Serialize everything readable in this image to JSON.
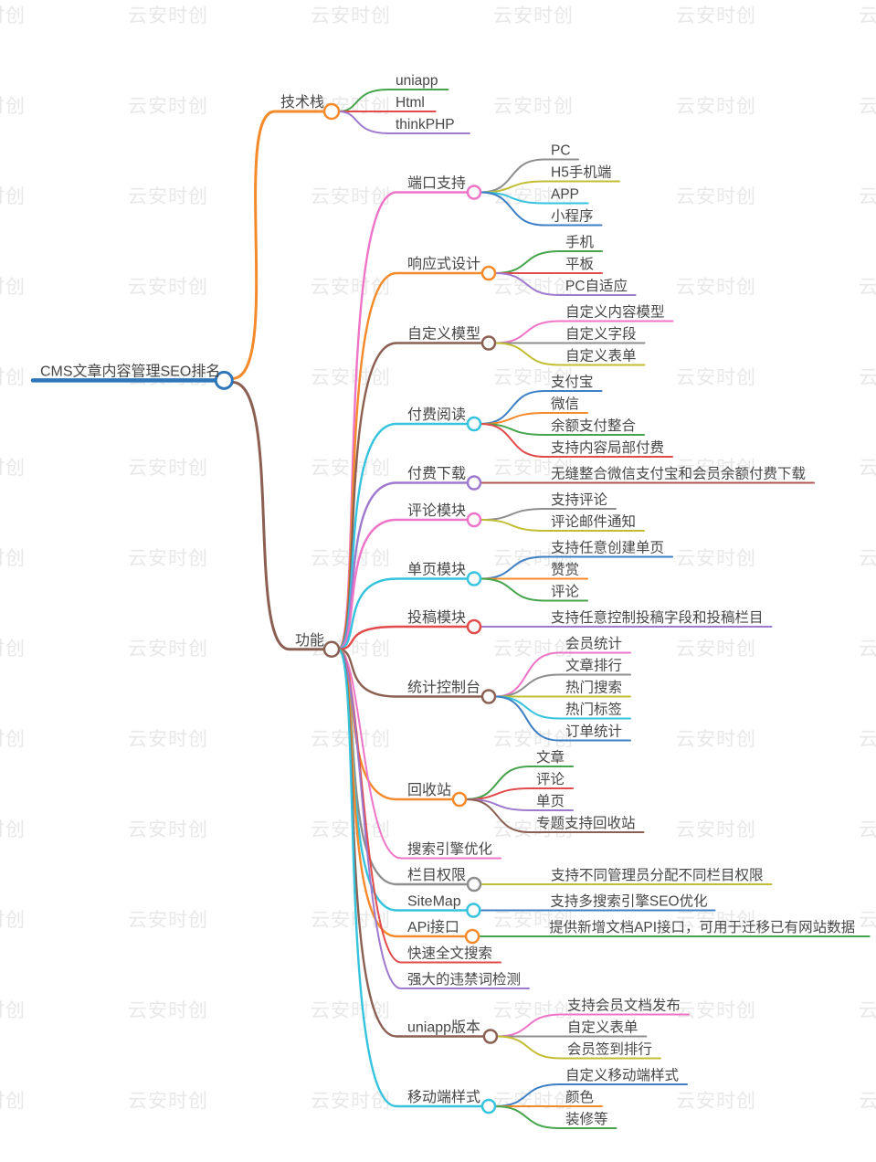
{
  "watermark": {
    "text": "云安时创"
  },
  "colors": {
    "rootblue": "#2e76ba",
    "blue": "#3f80c4",
    "orange": "#f58a2b",
    "green": "#46a44c",
    "red": "#e14b4b",
    "darkred": "#b05454",
    "purple": "#9e79cd",
    "pink": "#ee74c8",
    "cyan": "#35c3dd",
    "olive": "#c3bd33",
    "gray": "#8e8e8e",
    "brown": "#8b6052",
    "text": "#474747",
    "watermark": "#e8e8e8"
  },
  "mindmap": {
    "root": {
      "label": "CMS文章内容管理SEO排名",
      "color": "rootblue",
      "children": [
        {
          "label": "技术栈",
          "color": "orange",
          "children": [
            {
              "label": "uniapp",
              "color": "green"
            },
            {
              "label": "Html",
              "color": "red"
            },
            {
              "label": "thinkPHP",
              "color": "purple"
            }
          ]
        },
        {
          "label": "功能",
          "color": "brown",
          "children": [
            {
              "label": "端口支持",
              "color": "pink",
              "children": [
                {
                  "label": "PC",
                  "color": "gray"
                },
                {
                  "label": "H5手机端",
                  "color": "olive"
                },
                {
                  "label": "APP",
                  "color": "cyan"
                },
                {
                  "label": "小程序",
                  "color": "blue"
                }
              ]
            },
            {
              "label": "响应式设计",
              "color": "orange",
              "children": [
                {
                  "label": "手机",
                  "color": "green"
                },
                {
                  "label": "平板",
                  "color": "red"
                },
                {
                  "label": "PC自适应",
                  "color": "purple"
                }
              ]
            },
            {
              "label": "自定义模型",
              "color": "brown",
              "children": [
                {
                  "label": "自定义内容模型",
                  "color": "pink"
                },
                {
                  "label": "自定义字段",
                  "color": "gray"
                },
                {
                  "label": "自定义表单",
                  "color": "olive"
                }
              ]
            },
            {
              "label": "付费阅读",
              "color": "cyan",
              "children": [
                {
                  "label": "支付宝",
                  "color": "blue"
                },
                {
                  "label": "微信",
                  "color": "orange"
                },
                {
                  "label": "余额支付整合",
                  "color": "green"
                },
                {
                  "label": "支持内容局部付费",
                  "color": "red"
                }
              ]
            },
            {
              "label": "付费下载",
              "color": "purple",
              "children": [
                {
                  "label": "无缝整合微信支付宝和会员余额付费下载",
                  "color": "darkred"
                }
              ]
            },
            {
              "label": "评论模块",
              "color": "pink",
              "children": [
                {
                  "label": "支持评论",
                  "color": "gray"
                },
                {
                  "label": "评论邮件通知",
                  "color": "olive"
                }
              ]
            },
            {
              "label": "单页模块",
              "color": "cyan",
              "children": [
                {
                  "label": "支持任意创建单页",
                  "color": "blue"
                },
                {
                  "label": "赞赏",
                  "color": "orange"
                },
                {
                  "label": "评论",
                  "color": "green"
                }
              ]
            },
            {
              "label": "投稿模块",
              "color": "red",
              "children": [
                {
                  "label": "支持任意控制投稿字段和投稿栏目",
                  "color": "purple"
                }
              ]
            },
            {
              "label": "统计控制台",
              "color": "brown",
              "children": [
                {
                  "label": "会员统计",
                  "color": "pink"
                },
                {
                  "label": "文章排行",
                  "color": "gray"
                },
                {
                  "label": "热门搜索",
                  "color": "olive"
                },
                {
                  "label": "热门标签",
                  "color": "cyan"
                },
                {
                  "label": "订单统计",
                  "color": "blue"
                }
              ]
            },
            {
              "label": "回收站",
              "color": "orange",
              "children": [
                {
                  "label": "文章",
                  "color": "green"
                },
                {
                  "label": "评论",
                  "color": "red"
                },
                {
                  "label": "单页",
                  "color": "purple"
                },
                {
                  "label": "专题支持回收站",
                  "color": "brown"
                }
              ]
            },
            {
              "label": "搜索引擎优化",
              "color": "pink"
            },
            {
              "label": "栏目权限",
              "color": "gray",
              "children": [
                {
                  "label": "支持不同管理员分配不同栏目权限",
                  "color": "olive"
                }
              ]
            },
            {
              "label": "SiteMap",
              "color": "cyan",
              "children": [
                {
                  "label": "支持多搜索引擎SEO优化",
                  "color": "blue"
                }
              ]
            },
            {
              "label": "APi接口",
              "color": "orange",
              "children": [
                {
                  "label": "提供新增文档API接口，可用于迁移已有网站数据",
                  "color": "green"
                }
              ]
            },
            {
              "label": "快速全文搜索",
              "color": "red"
            },
            {
              "label": "强大的违禁词检测",
              "color": "purple"
            },
            {
              "label": "uniapp版本",
              "color": "brown",
              "children": [
                {
                  "label": "支持会员文档发布",
                  "color": "pink"
                },
                {
                  "label": "自定义表单",
                  "color": "gray"
                },
                {
                  "label": "会员签到排行",
                  "color": "olive"
                }
              ]
            },
            {
              "label": "移动端样式",
              "color": "cyan",
              "children": [
                {
                  "label": "自定义移动端样式",
                  "color": "blue"
                },
                {
                  "label": "颜色",
                  "color": "orange"
                },
                {
                  "label": "装修等",
                  "color": "green"
                }
              ]
            }
          ]
        }
      ]
    }
  }
}
